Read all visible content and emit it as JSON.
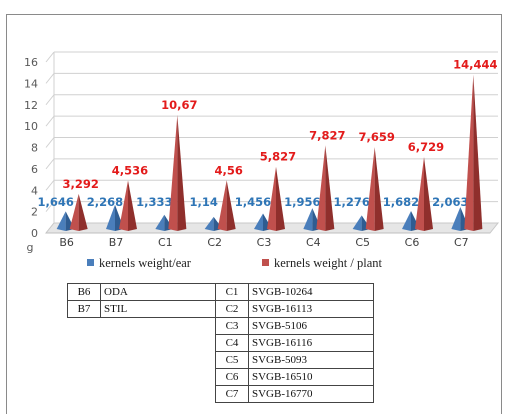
{
  "chart_data": {
    "type": "bar",
    "categories": [
      "B6",
      "B7",
      "C1",
      "C2",
      "C3",
      "C4",
      "C5",
      "C6",
      "C7"
    ],
    "series": [
      {
        "name": "kernels weight/ear",
        "color": "#4a7ebb",
        "values": [
          1.646,
          2.268,
          1.333,
          1.14,
          1.456,
          1.956,
          1.276,
          1.682,
          2.063
        ],
        "labels": [
          "1,646",
          "2,268",
          "1,333",
          "1,14",
          "1,456",
          "1,956",
          "1,276",
          "1,682",
          "2,063"
        ]
      },
      {
        "name": "kernels weight / plant",
        "color": "#c0504d",
        "values": [
          3.292,
          4.536,
          10.67,
          4.56,
          5.827,
          7.827,
          7.659,
          6.729,
          14.444
        ],
        "labels": [
          "3,292",
          "4,536",
          "10,67",
          "4,56",
          "5,827",
          "7,827",
          "7,659",
          "6,729",
          "14,444"
        ]
      }
    ],
    "bar_shape": "3d-cone",
    "ylabel": "g",
    "ylim": [
      0,
      16
    ],
    "yticks": [
      "0",
      "2",
      "4",
      "6",
      "8",
      "10",
      "12",
      "14",
      "16"
    ],
    "grid": true,
    "legend_position": "bottom"
  },
  "codes_table": [
    [
      "B6",
      "ODA",
      "C1",
      "SVGB-10264"
    ],
    [
      "B7",
      "STIL",
      "C2",
      "SVGB-16113"
    ],
    [
      "",
      "",
      "C3",
      "SVGB-5106"
    ],
    [
      "",
      "",
      "C4",
      "SVGB-16116"
    ],
    [
      "",
      "",
      "C5",
      "SVGB-5093"
    ],
    [
      "",
      "",
      "C6",
      "SVGB-16510"
    ],
    [
      "",
      "",
      "C7",
      "SVGB-16770"
    ]
  ]
}
